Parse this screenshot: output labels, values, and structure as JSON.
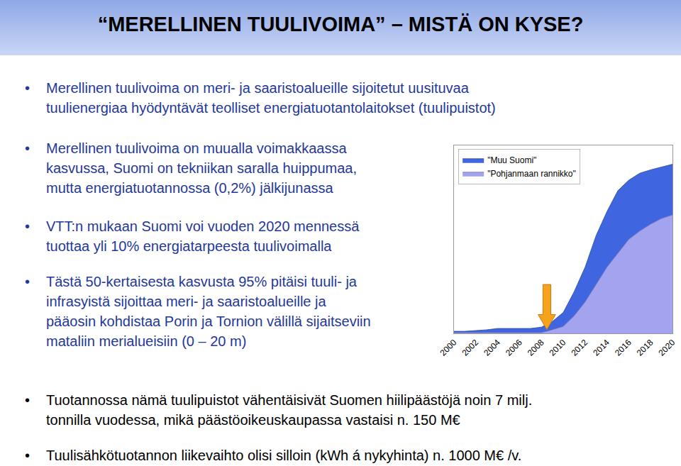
{
  "slide": {
    "title": "“MERELLINEN TUULIVOIMA” – MISTÄ ON KYSE?",
    "bullets_beside_chart": [
      [
        "Merellinen tuulivoima on meri- ja saaristoalueille sijoitetut uusituvaa",
        "tuulienergiaa hyödyntävät teolliset energiatuotantolaitokset (tuulipuistot)"
      ],
      [
        "Merellinen tuulivoima on muualla voimakkaassa",
        "kasvussa, Suomi on tekniikan saralla huippumaa,",
        "mutta energiatuotannossa (0,2%) jälkijunassa"
      ],
      [
        "VTT:n mukaan Suomi voi vuoden 2020 mennessä",
        "tuottaa yli 10% energiatarpeesta tuulivoimalla"
      ],
      [
        "Tästä 50-kertaisesta kasvusta 95% pitäisi tuuli- ja",
        "infrasyistä sijoittaa meri- ja saaristoalueille ja",
        "pääosin kohdistaa Porin ja Tornion välillä sijaitseviin",
        "mataliin merialueisiin (0 – 20 m)"
      ]
    ],
    "bullets_below_chart": [
      [
        "Tuotannossa nämä tuulipuistot vähentäisivät Suomen hiilipäästöjä noin 7 milj.",
        "tonnilla vuodessa,  mikä päästöoikeuskaupassa vastaisi n. 150 M€"
      ],
      [
        "Tuulisähkötuotannon liikevaihto olisi silloin (kWh á nykyhinta) n. 1000 M€ /v."
      ]
    ]
  },
  "chart_data": {
    "type": "area",
    "stacked": true,
    "x": [
      2000,
      2001,
      2002,
      2003,
      2004,
      2005,
      2006,
      2007,
      2008,
      2009,
      2010,
      2011,
      2012,
      2013,
      2014,
      2015,
      2016,
      2017,
      2018,
      2019,
      2020
    ],
    "series": [
      {
        "name": "\"Muu Suomi\"",
        "color": "#3f66e0",
        "values": [
          0.7,
          0.7,
          1.1,
          1.5,
          2.2,
          2.2,
          2.2,
          2.2,
          2.9,
          4.4,
          7.4,
          12.9,
          18.5,
          26.0,
          29.6,
          33.3,
          31.5,
          30.8,
          28.9,
          27.4,
          27.0
        ]
      },
      {
        "name": "\"Pohjanmaan rannikko\"",
        "color": "#a3a3f0",
        "values": [
          0.4,
          0.4,
          0.4,
          0.4,
          0.4,
          0.4,
          0.4,
          0.4,
          0.4,
          1.9,
          3.7,
          9.3,
          16.7,
          25.9,
          35.2,
          42.6,
          50.0,
          54.4,
          58.1,
          61.1,
          63.0
        ]
      }
    ],
    "xlim": [
      2000,
      2020
    ],
    "xticks": [
      2000,
      2002,
      2004,
      2006,
      2008,
      2010,
      2012,
      2014,
      2016,
      2018,
      2020
    ],
    "ylim": [
      0,
      100
    ],
    "tick_labels": "x",
    "grid": false,
    "legend": "upper left"
  }
}
